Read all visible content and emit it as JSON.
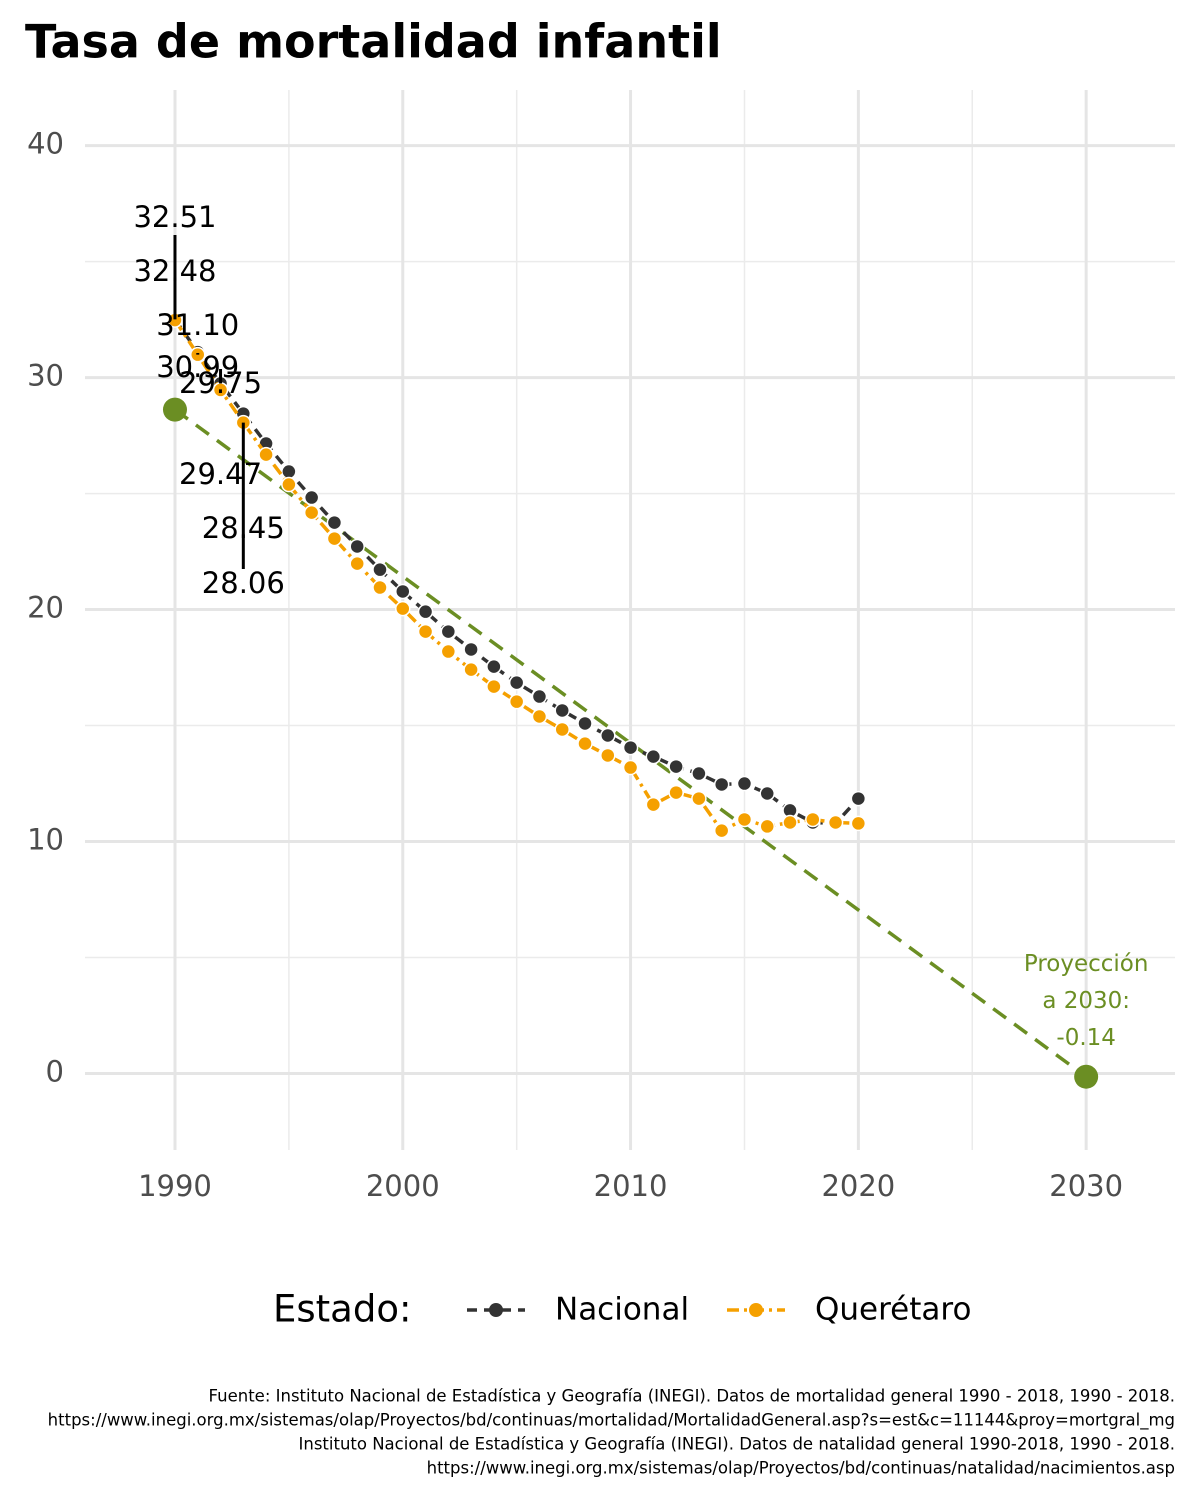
{
  "chart_data": {
    "type": "line",
    "title": "Tasa de mortalidad infantil",
    "x": [
      1990,
      1991,
      1992,
      1993,
      1994,
      1995,
      1996,
      1997,
      1998,
      1999,
      2000,
      2001,
      2002,
      2003,
      2004,
      2005,
      2006,
      2007,
      2008,
      2009,
      2010,
      2011,
      2012,
      2013,
      2014,
      2015,
      2016,
      2017,
      2018,
      2019,
      2020
    ],
    "series": [
      {
        "name": "Nacional",
        "color": "#333333",
        "values": [
          32.51,
          31.1,
          29.75,
          28.45,
          27.16,
          25.95,
          24.83,
          23.75,
          22.72,
          21.72,
          20.78,
          19.91,
          19.05,
          18.28,
          17.54,
          16.85,
          16.25,
          15.65,
          15.09,
          14.57,
          14.05,
          13.66,
          13.23,
          12.93,
          12.46,
          12.5,
          12.07,
          11.34,
          10.82,
          10.78,
          11.85
        ],
        "value_labels": [
          "32.51",
          "31.10",
          "29.75",
          "28.45",
          null,
          null,
          null,
          null,
          null,
          null,
          null,
          null,
          null,
          null,
          null,
          null,
          null,
          null,
          null,
          null,
          null,
          null,
          null,
          null,
          null,
          null,
          null,
          null,
          null,
          null,
          null
        ]
      },
      {
        "name": "Querétaro",
        "color": "#f5a000",
        "values": [
          32.48,
          30.99,
          29.47,
          28.06,
          26.68,
          25.39,
          24.18,
          23.06,
          21.98,
          20.95,
          20.04,
          19.05,
          18.19,
          17.41,
          16.68,
          16.03,
          15.39,
          14.83,
          14.22,
          13.71,
          13.19,
          11.59,
          12.11,
          11.85,
          10.47,
          10.95,
          10.65,
          10.82,
          10.95,
          10.82,
          10.78
        ],
        "value_labels": [
          "32.48",
          "30.99",
          "29.47",
          "28.06",
          null,
          null,
          null,
          null,
          null,
          null,
          null,
          null,
          null,
          null,
          null,
          null,
          null,
          null,
          null,
          null,
          null,
          null,
          null,
          null,
          null,
          null,
          null,
          null,
          null,
          null,
          null
        ]
      }
    ],
    "trend": {
      "x": [
        1990,
        2030
      ],
      "values": [
        28.62,
        -0.14
      ],
      "color": "#6b8e23"
    },
    "annotation": [
      "Proyección",
      "a 2030:",
      "-0.14"
    ],
    "legend_title": "Estado:",
    "xlim": [
      1986.05,
      2033.9
    ],
    "ylim": [
      -3.3,
      42.4
    ],
    "xticks": [
      1990,
      2000,
      2010,
      2020,
      2030
    ],
    "yticks": [
      0,
      10,
      20,
      30,
      40
    ],
    "xminor": [
      1995,
      2005,
      2015,
      2025
    ],
    "yminor": [
      5,
      15,
      25,
      35
    ],
    "grid": true,
    "legend": "bottom",
    "caption": [
      "Fuente: Instituto Nacional de Estadística y Geografía (INEGI). Datos de mortalidad general 1990 - 2018, 1990 - 2018.",
      "https://www.inegi.org.mx/sistemas/olap/Proyectos/bd/continuas/mortalidad/MortalidadGeneral.asp?s=est&c=11144&proy=mortgral_mg",
      "Instituto Nacional de Estadística y Geografía (INEGI). Datos de natalidad general 1990-2018, 1990 - 2018.",
      "https://www.inegi.org.mx/sistemas/olap/Proyectos/bd/continuas/natalidad/nacimientos.asp"
    ]
  }
}
